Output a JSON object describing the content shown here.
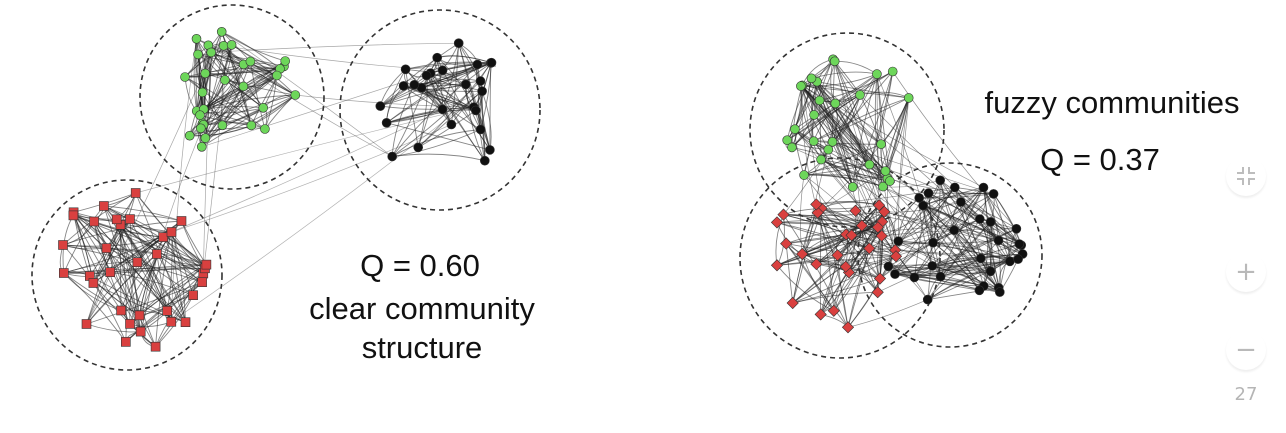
{
  "panels": {
    "left": {
      "q_value": "Q = 0.60",
      "description": [
        "clear community",
        "structure"
      ]
    },
    "right": {
      "description": "fuzzy communities",
      "q_value": "Q = 0.37"
    }
  },
  "colors": {
    "green_nodes": "#6dd65a",
    "black_nodes": "#111111",
    "red_nodes": "#d9403f",
    "edges": "#222222",
    "community_outline": "#333333"
  },
  "controls": {
    "fit_icon": "collapse-arrows-icon",
    "zoom_in": "+",
    "zoom_out": "−",
    "page_number": "27"
  }
}
